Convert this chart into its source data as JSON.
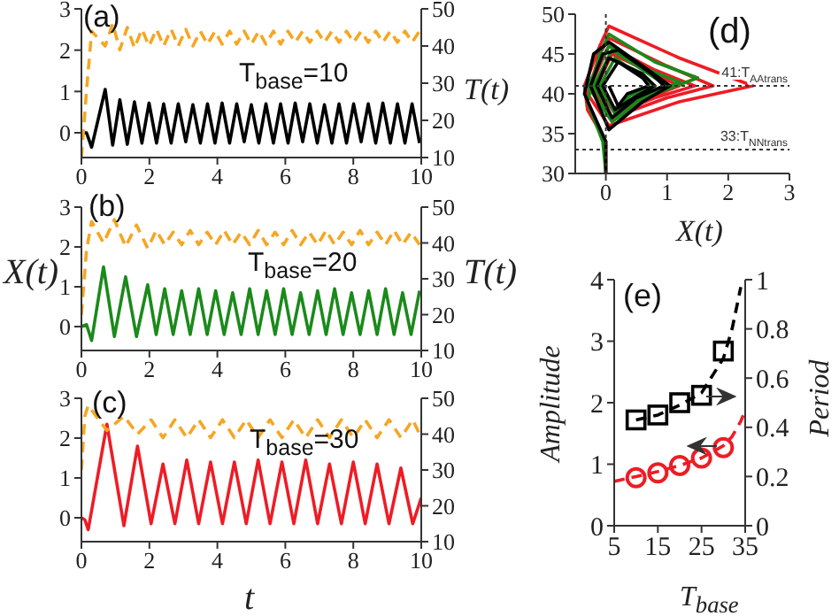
{
  "chart_data": [
    {
      "type": "line",
      "x": [
        0,
        0.15,
        0.3,
        0.7,
        0.92,
        1.13,
        1.35,
        1.56,
        1.78,
        1.99,
        2.21,
        2.42,
        2.64,
        2.85,
        3.07,
        3.28,
        3.5,
        3.71,
        3.93,
        4.14,
        4.36,
        4.57,
        4.79,
        5,
        5.22,
        5.43,
        5.65,
        5.86,
        6.08,
        6.29,
        6.51,
        6.72,
        6.94,
        7.15,
        7.37,
        7.58,
        7.8,
        8.01,
        8.23,
        8.44,
        8.66,
        8.87,
        9.09,
        9.3,
        9.52,
        9.73,
        9.95
      ],
      "series": [
        {
          "color": "#000000",
          "values": [
            0,
            0,
            -0.35,
            1.05,
            -0.3,
            0.8,
            -0.28,
            0.75,
            -0.25,
            0.72,
            -0.25,
            0.7,
            -0.25,
            0.7,
            -0.22,
            0.68,
            -0.25,
            0.7,
            -0.25,
            0.72,
            -0.25,
            0.7,
            -0.22,
            0.68,
            -0.25,
            0.7,
            -0.25,
            0.7,
            -0.25,
            0.72,
            -0.22,
            0.7,
            -0.25,
            0.68,
            -0.25,
            0.7,
            -0.25,
            0.7,
            -0.22,
            0.7,
            -0.25,
            0.72,
            -0.25,
            0.7,
            -0.25,
            0.7,
            -0.25
          ]
        },
        {
          "color": "#f5a623",
          "axis": "y2",
          "line_style": "dashed",
          "values": [
            10,
            28,
            44,
            40,
            46,
            39,
            45,
            39.5,
            44.5,
            40,
            44.5,
            40,
            44.5,
            40,
            44.5,
            40,
            44,
            40.5,
            44,
            40.5,
            44,
            40.5,
            44,
            40.5,
            44,
            40.5,
            44,
            40.5,
            44,
            41,
            44,
            41,
            44,
            41,
            44,
            41,
            44,
            41,
            44,
            41,
            44,
            41,
            44,
            41,
            44,
            41,
            44
          ]
        }
      ],
      "xlim": [
        0,
        10
      ],
      "xticks": [
        0,
        2,
        4,
        6,
        8,
        10
      ],
      "ylim": [
        -0.6,
        3
      ],
      "yticks": [
        0,
        1,
        2,
        3
      ],
      "y2lim": [
        10,
        50
      ],
      "y2ticks": [
        10,
        20,
        30,
        40,
        50
      ],
      "annotations": [
        "(a)",
        "T$_{base}$=10"
      ]
    },
    {
      "type": "line",
      "x": [
        0,
        0.15,
        0.3,
        0.65,
        0.97,
        1.3,
        1.62,
        1.95,
        2.2,
        2.45,
        2.7,
        2.95,
        3.2,
        3.45,
        3.7,
        3.95,
        4.2,
        4.45,
        4.7,
        4.95,
        5.2,
        5.45,
        5.7,
        5.95,
        6.2,
        6.45,
        6.7,
        6.95,
        7.2,
        7.45,
        7.7,
        7.95,
        8.2,
        8.45,
        8.7,
        8.95,
        9.2,
        9.45,
        9.7,
        9.95
      ],
      "series": [
        {
          "color": "#1a8a1a",
          "values": [
            0,
            0.05,
            -0.35,
            1.5,
            -0.25,
            1.25,
            -0.25,
            1.05,
            -0.2,
            0.95,
            -0.2,
            0.9,
            -0.2,
            0.95,
            -0.2,
            0.9,
            -0.2,
            0.85,
            -0.2,
            0.95,
            -0.2,
            0.9,
            -0.2,
            0.95,
            -0.2,
            0.85,
            -0.2,
            0.9,
            -0.2,
            0.95,
            -0.2,
            0.85,
            -0.2,
            0.9,
            -0.2,
            0.95,
            -0.2,
            0.85,
            -0.2,
            0.9
          ]
        },
        {
          "color": "#f5a623",
          "axis": "y2",
          "line_style": "dashed",
          "values": [
            20,
            38,
            46,
            40,
            46.5,
            39,
            45,
            38.5,
            43.5,
            39.5,
            43,
            39.5,
            43.5,
            39.5,
            43,
            39.5,
            43.5,
            39.5,
            43,
            39.5,
            43.5,
            39.5,
            43,
            39.5,
            43.5,
            39.5,
            43,
            39.5,
            43.5,
            39.5,
            43,
            39.5,
            43.5,
            39.5,
            43,
            39.5,
            43.5,
            39.5,
            43,
            39.5
          ]
        }
      ],
      "xlim": [
        0,
        10
      ],
      "xticks": [
        0,
        2,
        4,
        6,
        8,
        10
      ],
      "ylim": [
        -0.6,
        3
      ],
      "yticks": [
        0,
        1,
        2,
        3
      ],
      "y2lim": [
        10,
        50
      ],
      "y2ticks": [
        10,
        20,
        30,
        40,
        50
      ],
      "ylabel": "X(t)",
      "y2label": "T(t)",
      "annotations": [
        "(b)",
        "T$_{base}$=20"
      ]
    },
    {
      "type": "line",
      "x": [
        0,
        0.1,
        0.2,
        0.75,
        1.25,
        1.65,
        2.05,
        2.4,
        2.75,
        3.1,
        3.45,
        3.8,
        4.15,
        4.5,
        4.85,
        5.2,
        5.55,
        5.9,
        6.25,
        6.6,
        6.95,
        7.3,
        7.65,
        8,
        8.35,
        8.7,
        9.05,
        9.4,
        9.75,
        10
      ],
      "series": [
        {
          "color": "#ee1c25",
          "values": [
            0,
            -0.05,
            -0.3,
            2.35,
            -0.2,
            1.8,
            -0.15,
            1.35,
            -0.15,
            1.45,
            -0.15,
            1.4,
            -0.15,
            1.4,
            -0.15,
            1.45,
            -0.15,
            1.4,
            -0.15,
            1.45,
            -0.15,
            1.35,
            -0.15,
            1.4,
            -0.15,
            1.35,
            -0.15,
            1.25,
            -0.15,
            0.5
          ]
        },
        {
          "color": "#f5a623",
          "axis": "y2",
          "line_style": "dashed",
          "values": [
            30,
            45,
            48,
            41,
            45,
            40,
            44,
            39,
            44,
            39,
            44,
            39,
            44,
            39,
            44,
            39,
            44,
            39,
            44,
            39,
            44,
            39,
            44,
            39,
            44,
            39,
            44,
            39,
            44,
            39
          ]
        }
      ],
      "xlim": [
        0,
        10
      ],
      "xticks": [
        0,
        2,
        4,
        6,
        8,
        10
      ],
      "ylim": [
        -0.6,
        3
      ],
      "yticks": [
        0,
        1,
        2,
        3
      ],
      "y2lim": [
        10,
        50
      ],
      "y2ticks": [
        10,
        20,
        30,
        40,
        50
      ],
      "xlabel": "t",
      "annotations": [
        "(c)",
        "T$_{base}$=30"
      ]
    },
    {
      "type": "line",
      "series": [
        {
          "color": "#ee1c25",
          "x": [
            0,
            0,
            -0.3,
            -0.35,
            -0.1,
            0.05,
            1.2,
            2.4,
            1.2,
            0.05,
            -0.3,
            -0.1,
            0.05,
            1,
            1.75,
            1,
            0.1,
            -0.25,
            0.05,
            0.8,
            1.45,
            0.8,
            0.15,
            -0.15,
            0.1,
            1.2,
            0.2
          ],
          "values": [
            30,
            34,
            38,
            41,
            46,
            48.5,
            44.5,
            41,
            39,
            36,
            40,
            45,
            47,
            43.5,
            41,
            39.5,
            37,
            41,
            46,
            43,
            41,
            39.5,
            37.5,
            41,
            45,
            41,
            38
          ]
        },
        {
          "color": "#1a8a1a",
          "x": [
            0,
            -0.05,
            -0.3,
            -0.1,
            0.05,
            0.8,
            1.5,
            0.8,
            0.1,
            -0.3,
            0.05,
            0.7,
            1.2,
            0.6,
            0.1,
            -0.2,
            0.1,
            0.7,
            1,
            0.5,
            0.15,
            -0.1,
            0.15,
            0.6,
            0.8,
            0.4,
            0.15
          ],
          "values": [
            30,
            34,
            39,
            45,
            47.5,
            44,
            42,
            40,
            36.5,
            41,
            46,
            43,
            41.5,
            39.5,
            37,
            41,
            45.5,
            42.5,
            41,
            39.5,
            37.5,
            41,
            44.5,
            42,
            41,
            39.8,
            38.2
          ]
        },
        {
          "color": "#000000",
          "x": [
            0,
            0,
            -0.35,
            -0.2,
            0.05,
            0.6,
            1.05,
            0.6,
            0.05,
            -0.25,
            -0.05,
            0.2,
            0.75,
            0.95,
            0.5,
            0.1,
            -0.15,
            0.05,
            0.6,
            0.8,
            0.45,
            0.15,
            -0.05,
            0.2,
            0.6,
            0.7,
            0.35,
            0.2,
            0.05
          ],
          "values": [
            30,
            34,
            40,
            45,
            46.5,
            43.5,
            41,
            39,
            35.5,
            41,
            45,
            45.5,
            42.5,
            41,
            39.5,
            37,
            41,
            44.5,
            42.5,
            41,
            39.5,
            38,
            41,
            44,
            42,
            41,
            40,
            38.5,
            41
          ]
        }
      ],
      "xlim": [
        -0.5,
        3
      ],
      "xticks": [
        0,
        1,
        2,
        3
      ],
      "ylim": [
        30,
        50
      ],
      "yticks": [
        30,
        35,
        40,
        45,
        50
      ],
      "xlabel": "X(t)",
      "ylabel": "T(t)",
      "ref_lines": [
        {
          "axis": "y",
          "value": 41,
          "label": "41:T$_{AAtrans}$",
          "line_style": "dotted"
        },
        {
          "axis": "y",
          "value": 33,
          "label": "33:T$_{NNtrans}$",
          "line_style": "dotted"
        },
        {
          "axis": "x",
          "value": 0,
          "line_style": "dotted"
        }
      ],
      "annotations": [
        "(d)"
      ]
    },
    {
      "type": "scatter",
      "series": [
        {
          "type": "line",
          "color": "#ee1c25",
          "line_style": "dashed",
          "x": [
            5,
            10,
            15,
            20,
            25,
            30,
            32,
            34,
            35
          ],
          "values": [
            0.72,
            0.8,
            0.88,
            0.98,
            1.1,
            1.3,
            1.45,
            1.7,
            1.87
          ]
        },
        {
          "type": "line",
          "color": "#000000",
          "axis": "y2",
          "line_style": "dashed",
          "x": [
            10,
            15,
            20,
            25,
            30,
            32,
            34
          ],
          "values": [
            0.43,
            0.45,
            0.49,
            0.54,
            0.68,
            0.8,
            0.97
          ]
        },
        {
          "color": "#ee1c25",
          "marker": "circle",
          "x": [
            10,
            15,
            20,
            25,
            30
          ],
          "values": [
            0.78,
            0.86,
            0.98,
            1.1,
            1.27
          ]
        },
        {
          "color": "#000000",
          "marker": "square",
          "axis": "y2",
          "x": [
            10,
            15,
            20,
            25,
            30
          ],
          "values": [
            0.43,
            0.45,
            0.5,
            0.53,
            0.71
          ]
        }
      ],
      "xlim": [
        5,
        35
      ],
      "xticks": [
        5,
        15,
        25,
        35
      ],
      "ylim": [
        0,
        4
      ],
      "yticks": [
        0,
        1,
        2,
        3,
        4
      ],
      "y2lim": [
        0,
        1
      ],
      "y2ticks": [
        0,
        0.2,
        0.4,
        0.6,
        0.8,
        1
      ],
      "xlabel": "T$_{base}$",
      "ylabel": "Amplitude",
      "y2label": "Period",
      "annotations": [
        "(e)"
      ]
    }
  ]
}
